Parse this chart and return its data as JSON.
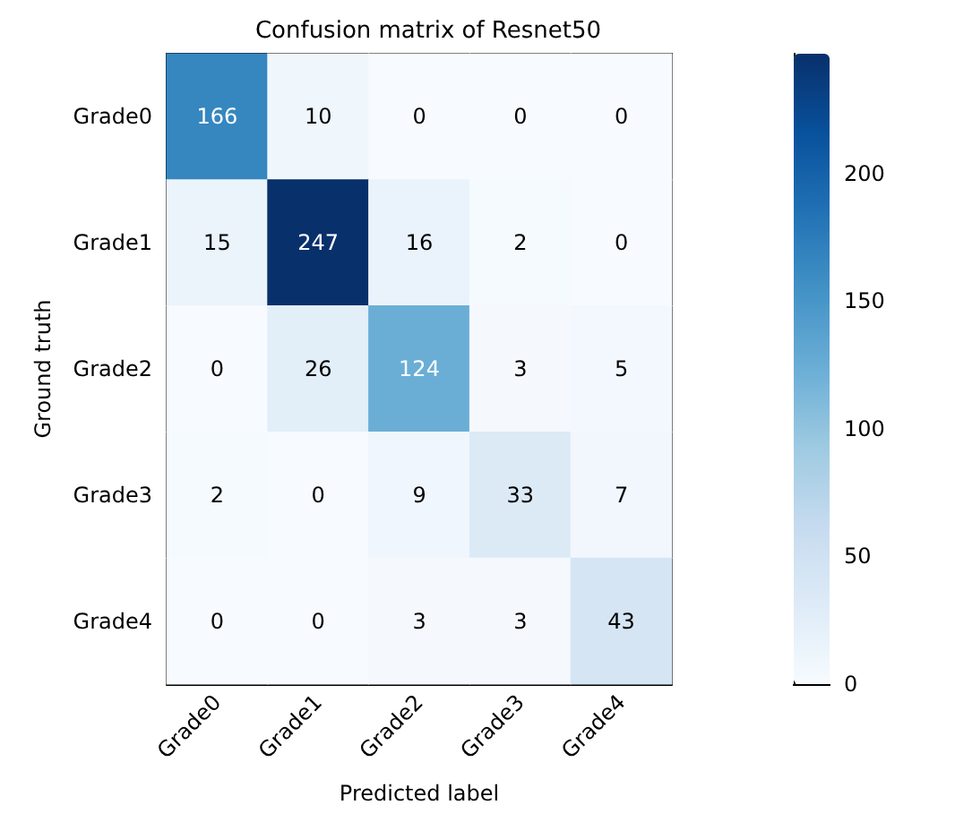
{
  "chart_data": {
    "type": "heatmap",
    "title": "Confusion matrix of Resnet50",
    "xlabel": "Predicted label",
    "ylabel": "Ground truth",
    "categories": [
      "Grade0",
      "Grade1",
      "Grade2",
      "Grade3",
      "Grade4"
    ],
    "y_categories": [
      "Grade0",
      "Grade1",
      "Grade2",
      "Grade3",
      "Grade4"
    ],
    "cells": [
      [
        166,
        10,
        0,
        0,
        0
      ],
      [
        15,
        247,
        16,
        2,
        0
      ],
      [
        0,
        26,
        124,
        3,
        5
      ],
      [
        2,
        0,
        9,
        33,
        7
      ],
      [
        0,
        0,
        3,
        3,
        43
      ]
    ],
    "clim": [
      0,
      247
    ],
    "cticks": [
      0,
      50,
      100,
      150,
      200
    ],
    "data_labels": true
  }
}
